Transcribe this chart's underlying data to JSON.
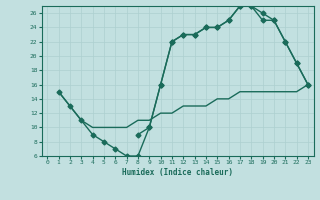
{
  "xlabel": "Humidex (Indice chaleur)",
  "ylabel": "",
  "bg_color": "#c2e0e0",
  "line_color": "#1a6b5a",
  "grid_color": "#add0d0",
  "xlim": [
    -0.5,
    23.5
  ],
  "ylim": [
    6,
    27
  ],
  "xticks": [
    0,
    1,
    2,
    3,
    4,
    5,
    6,
    7,
    8,
    9,
    10,
    11,
    12,
    13,
    14,
    15,
    16,
    17,
    18,
    19,
    20,
    21,
    22,
    23
  ],
  "yticks": [
    6,
    8,
    10,
    12,
    14,
    16,
    18,
    20,
    22,
    24,
    26
  ],
  "line_jagged_x": [
    1,
    2,
    3,
    4,
    5,
    6,
    7,
    8,
    9,
    10,
    11,
    12,
    13,
    14,
    15,
    16,
    17,
    18,
    19,
    20,
    21,
    22,
    23
  ],
  "line_jagged_y": [
    15,
    13,
    11,
    9,
    8,
    7,
    6,
    6,
    10,
    16,
    22,
    23,
    23,
    24,
    24,
    25,
    27,
    27,
    26,
    25,
    22,
    19,
    16
  ],
  "line_upper_x": [
    8,
    9,
    10,
    11,
    12,
    13,
    14,
    15,
    16,
    17,
    18,
    19,
    20,
    21,
    22,
    23
  ],
  "line_upper_y": [
    9,
    10,
    16,
    22,
    23,
    23,
    24,
    24,
    25,
    27,
    27,
    25,
    25,
    22,
    19,
    16
  ],
  "line_diag_x": [
    1,
    3,
    4,
    5,
    6,
    7,
    8,
    9,
    10,
    11,
    12,
    13,
    14,
    15,
    16,
    17,
    18,
    19,
    20,
    21,
    22,
    23
  ],
  "line_diag_y": [
    15,
    11,
    10,
    10,
    10,
    10,
    11,
    11,
    12,
    12,
    13,
    13,
    13,
    14,
    14,
    15,
    15,
    15,
    15,
    15,
    15,
    16
  ],
  "marker": "D",
  "marker_size": 2.5,
  "linewidth": 1.0
}
